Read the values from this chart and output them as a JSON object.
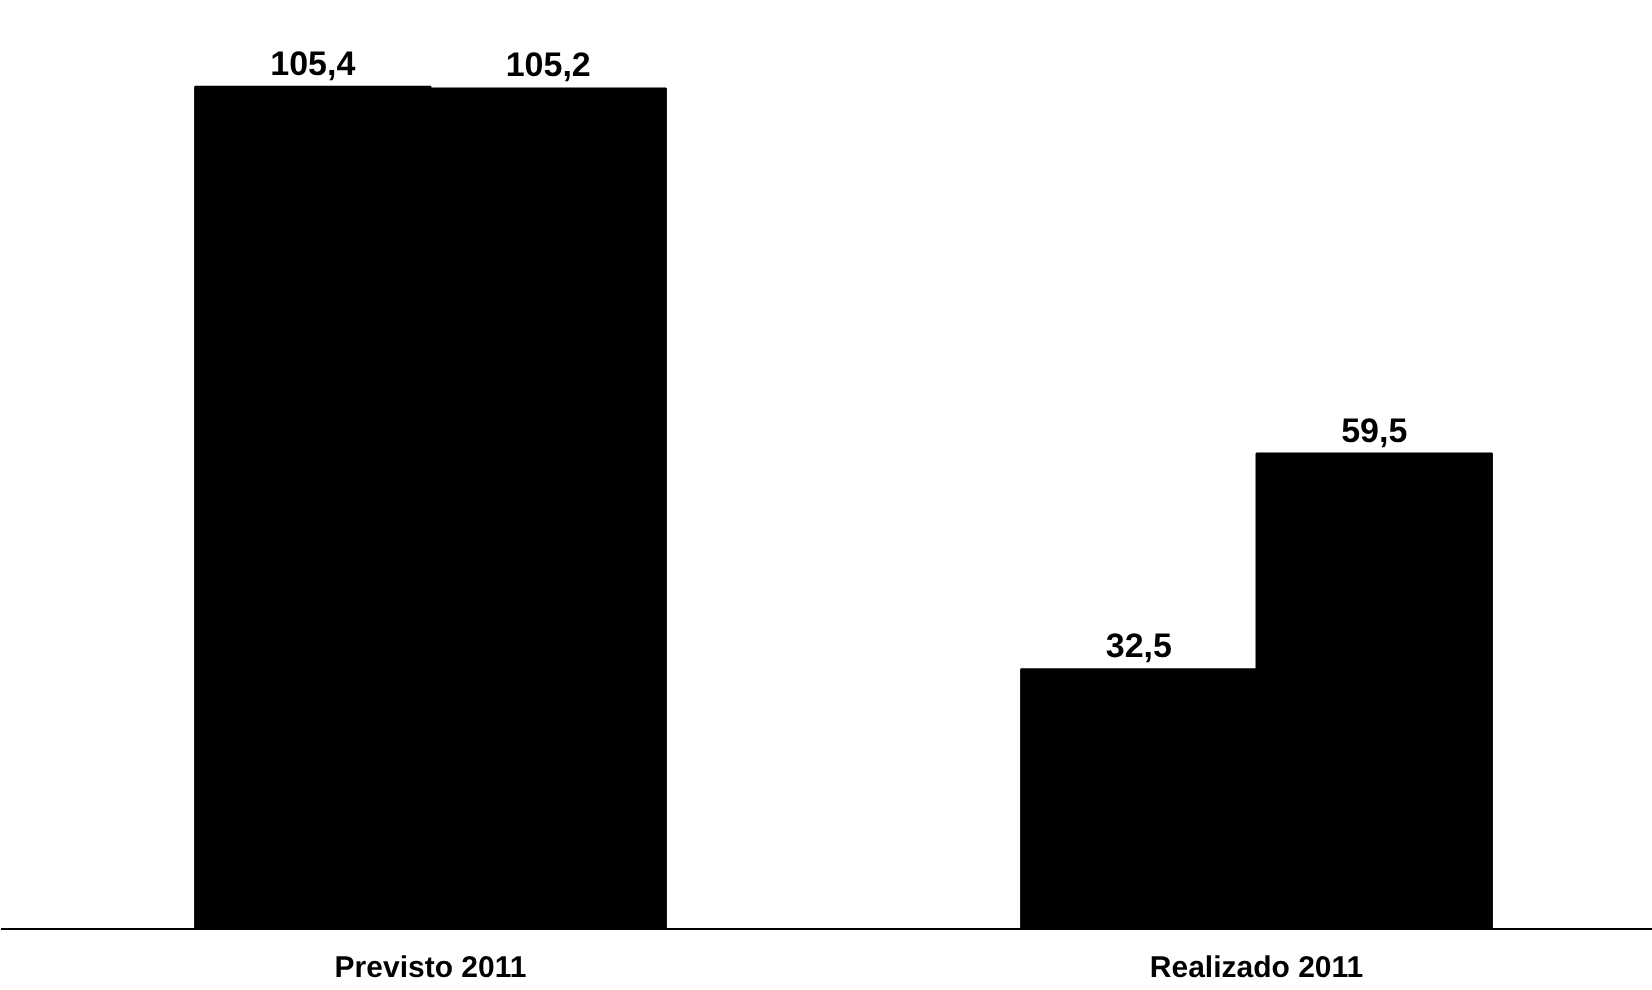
{
  "chart_data": {
    "type": "bar",
    "categories": [
      "Previsto 2011",
      "Realizado 2011"
    ],
    "series": [
      {
        "color": "#000000",
        "values": [
          105.4,
          32.5
        ],
        "value_labels": [
          "105,4",
          "32,5"
        ]
      },
      {
        "color": "#000000",
        "values": [
          105.2,
          59.5
        ],
        "value_labels": [
          "105,2",
          "59,5"
        ]
      }
    ],
    "grid": false,
    "tick_labels": "x"
  }
}
